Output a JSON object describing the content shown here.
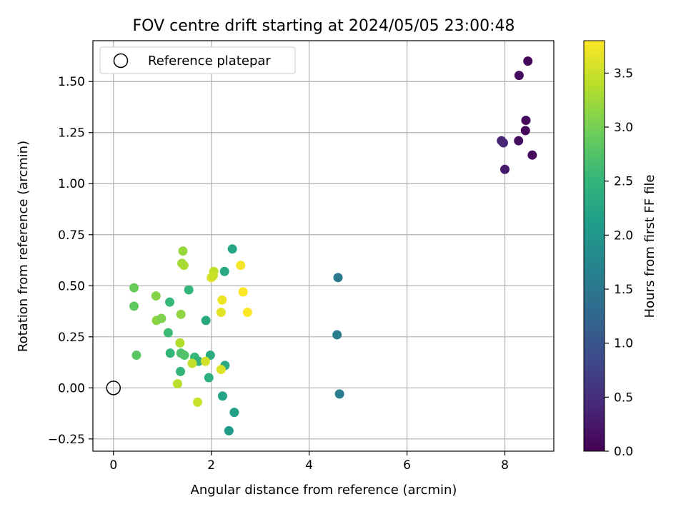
{
  "chart_data": {
    "type": "scatter",
    "title": "FOV centre drift starting at 2024/05/05 23:00:48",
    "xlabel": "Angular distance from reference (arcmin)",
    "ylabel": "Rotation from reference (arcmin)",
    "xlim": [
      -0.42,
      9.0
    ],
    "ylim": [
      -0.31,
      1.7
    ],
    "xticks": [
      0,
      2,
      4,
      6,
      8
    ],
    "xtick_labels": [
      "0",
      "2",
      "4",
      "6",
      "8"
    ],
    "yticks": [
      -0.25,
      0.0,
      0.25,
      0.5,
      0.75,
      1.0,
      1.25,
      1.5
    ],
    "ytick_labels": [
      "−0.25",
      "0.00",
      "0.25",
      "0.50",
      "0.75",
      "1.00",
      "1.25",
      "1.50"
    ],
    "grid": true,
    "legend": {
      "position": "top-left",
      "label": "Reference platepar"
    },
    "reference_point": {
      "x": 0.0,
      "y": 0.0
    },
    "colorbar": {
      "label": "Hours from first FF file",
      "range": [
        0.0,
        3.8
      ],
      "ticks": [
        0.0,
        0.5,
        1.0,
        1.5,
        2.0,
        2.5,
        3.0,
        3.5
      ],
      "tick_labels": [
        "0.0",
        "0.5",
        "1.0",
        "1.5",
        "2.0",
        "2.5",
        "3.0",
        "3.5"
      ],
      "colormap": "viridis",
      "colormap_stops": [
        "#440154",
        "#482878",
        "#3e4989",
        "#31688e",
        "#26828e",
        "#1f9e89",
        "#35b779",
        "#6ece58",
        "#b5de2b",
        "#fde725"
      ]
    },
    "points": [
      {
        "x": 8.47,
        "y": 1.6,
        "h": 0.05
      },
      {
        "x": 8.29,
        "y": 1.53,
        "h": 0.12
      },
      {
        "x": 8.43,
        "y": 1.31,
        "h": 0.06
      },
      {
        "x": 8.42,
        "y": 1.26,
        "h": 0.08
      },
      {
        "x": 7.93,
        "y": 1.21,
        "h": 0.35
      },
      {
        "x": 7.97,
        "y": 1.2,
        "h": 0.4
      },
      {
        "x": 8.28,
        "y": 1.21,
        "h": 0.15
      },
      {
        "x": 8.56,
        "y": 1.14,
        "h": 0.1
      },
      {
        "x": 8.0,
        "y": 1.07,
        "h": 0.25
      },
      {
        "x": 4.59,
        "y": 0.54,
        "h": 1.55
      },
      {
        "x": 4.57,
        "y": 0.26,
        "h": 1.58
      },
      {
        "x": 4.62,
        "y": -0.03,
        "h": 1.62
      },
      {
        "x": 2.43,
        "y": 0.68,
        "h": 2.25
      },
      {
        "x": 2.27,
        "y": 0.57,
        "h": 2.3
      },
      {
        "x": 1.54,
        "y": 0.48,
        "h": 2.5
      },
      {
        "x": 1.15,
        "y": 0.42,
        "h": 2.55
      },
      {
        "x": 1.89,
        "y": 0.33,
        "h": 2.3
      },
      {
        "x": 1.12,
        "y": 0.27,
        "h": 2.6
      },
      {
        "x": 1.16,
        "y": 0.17,
        "h": 2.5
      },
      {
        "x": 1.38,
        "y": 0.17,
        "h": 2.7
      },
      {
        "x": 1.45,
        "y": 0.16,
        "h": 2.75
      },
      {
        "x": 1.66,
        "y": 0.15,
        "h": 2.55
      },
      {
        "x": 1.74,
        "y": 0.13,
        "h": 2.45
      },
      {
        "x": 1.98,
        "y": 0.16,
        "h": 2.35
      },
      {
        "x": 2.28,
        "y": 0.11,
        "h": 2.3
      },
      {
        "x": 1.37,
        "y": 0.08,
        "h": 2.5
      },
      {
        "x": 1.95,
        "y": 0.05,
        "h": 2.4
      },
      {
        "x": 2.23,
        "y": -0.04,
        "h": 2.2
      },
      {
        "x": 2.47,
        "y": -0.12,
        "h": 2.15
      },
      {
        "x": 2.36,
        "y": -0.21,
        "h": 2.1
      },
      {
        "x": 0.42,
        "y": 0.49,
        "h": 2.9
      },
      {
        "x": 0.42,
        "y": 0.4,
        "h": 2.85
      },
      {
        "x": 0.47,
        "y": 0.16,
        "h": 2.8
      },
      {
        "x": 0.87,
        "y": 0.45,
        "h": 3.1
      },
      {
        "x": 0.88,
        "y": 0.33,
        "h": 3.15
      },
      {
        "x": 0.98,
        "y": 0.34,
        "h": 3.05
      },
      {
        "x": 1.42,
        "y": 0.67,
        "h": 3.2
      },
      {
        "x": 1.4,
        "y": 0.61,
        "h": 3.25
      },
      {
        "x": 1.44,
        "y": 0.6,
        "h": 3.3
      },
      {
        "x": 1.38,
        "y": 0.36,
        "h": 3.15
      },
      {
        "x": 1.36,
        "y": 0.22,
        "h": 3.35
      },
      {
        "x": 1.31,
        "y": 0.02,
        "h": 3.4
      },
      {
        "x": 1.61,
        "y": 0.12,
        "h": 3.45
      },
      {
        "x": 1.72,
        "y": -0.07,
        "h": 3.5
      },
      {
        "x": 1.88,
        "y": 0.13,
        "h": 3.55
      },
      {
        "x": 2.0,
        "y": 0.54,
        "h": 3.6
      },
      {
        "x": 2.05,
        "y": 0.57,
        "h": 3.45
      },
      {
        "x": 2.04,
        "y": 0.55,
        "h": 3.5
      },
      {
        "x": 2.22,
        "y": 0.43,
        "h": 3.7
      },
      {
        "x": 2.2,
        "y": 0.37,
        "h": 3.65
      },
      {
        "x": 2.2,
        "y": 0.09,
        "h": 3.6
      },
      {
        "x": 2.6,
        "y": 0.6,
        "h": 3.75
      },
      {
        "x": 2.65,
        "y": 0.47,
        "h": 3.8
      },
      {
        "x": 2.74,
        "y": 0.37,
        "h": 3.8
      }
    ]
  }
}
